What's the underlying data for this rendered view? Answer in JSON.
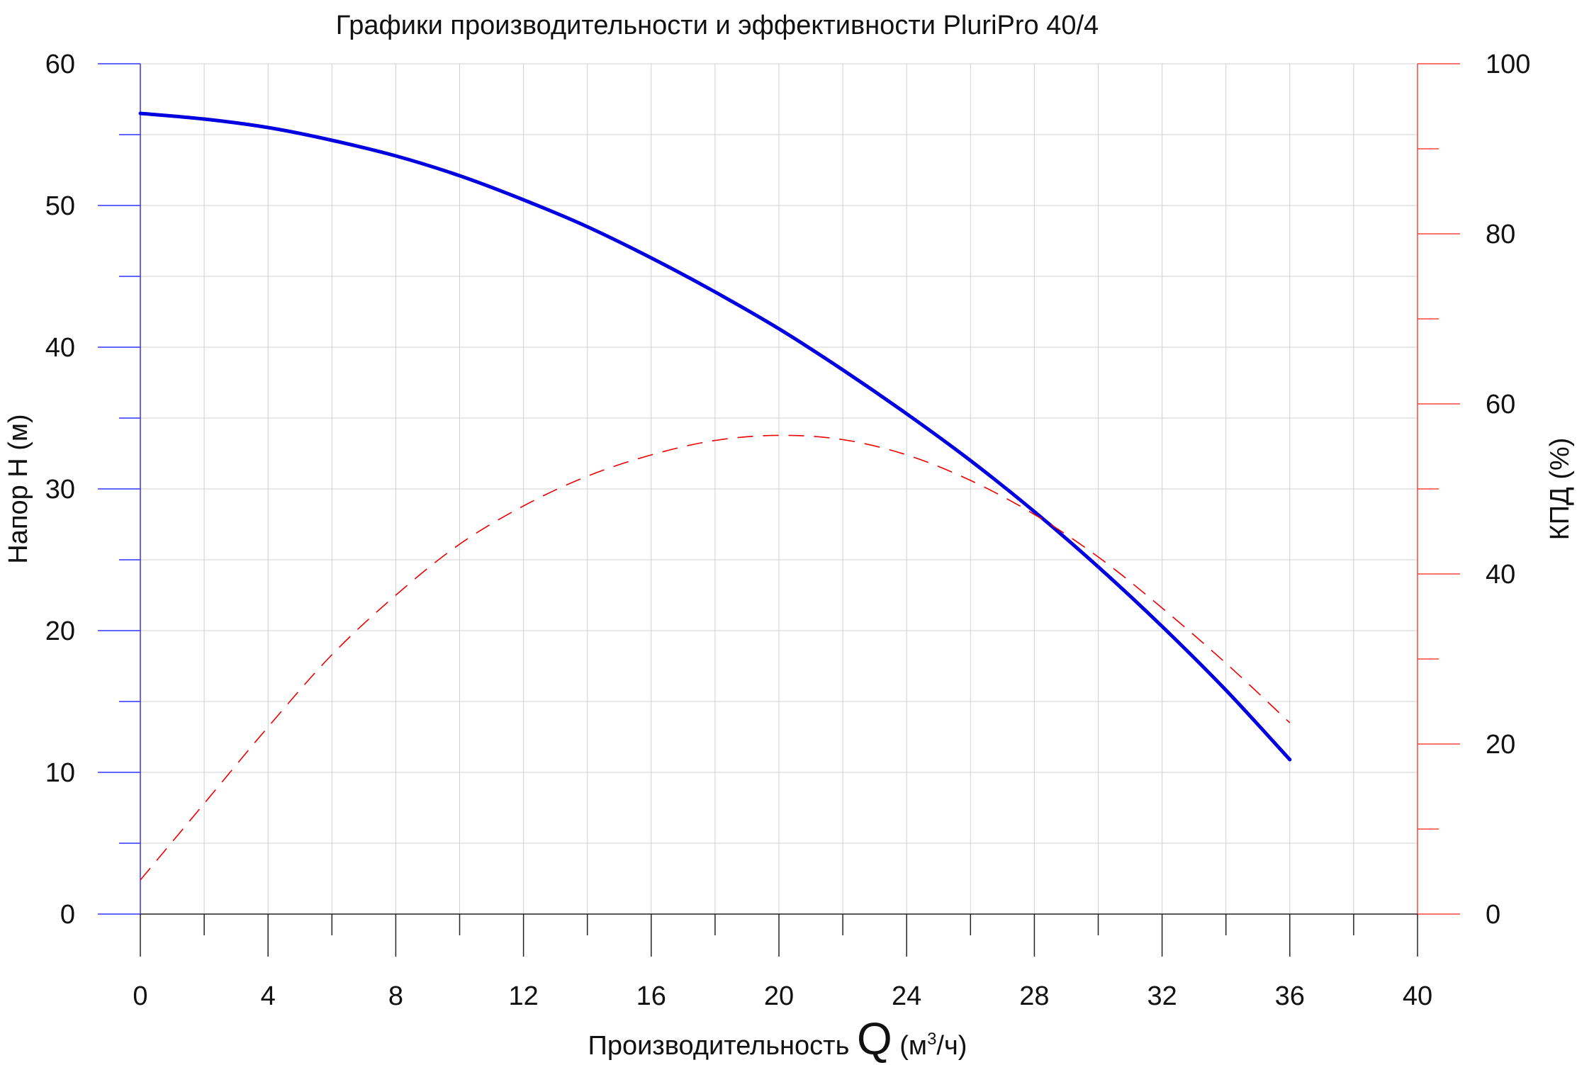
{
  "chart_data": {
    "type": "line",
    "title": "Графики производительности и эффективности PluriPro 40/4",
    "xlabel": {
      "prefix": "Производительность ",
      "symbol": "Q",
      "unit_open": " (м",
      "unit_sup": "3",
      "unit_close": "/ч)"
    },
    "ylabel_left": "Напор Н (м)",
    "ylabel_right": "КПД (%)",
    "xlim": [
      0,
      40
    ],
    "ylim_left": [
      0,
      60
    ],
    "ylim_right": [
      0,
      100
    ],
    "x_ticks": [
      0,
      4,
      8,
      12,
      16,
      20,
      24,
      28,
      32,
      36,
      40
    ],
    "y_left_ticks": [
      0,
      10,
      20,
      30,
      40,
      50,
      60
    ],
    "y_right_ticks": [
      0,
      20,
      40,
      60,
      80,
      100
    ],
    "grid": true,
    "series": [
      {
        "axis": "left",
        "style": "solid",
        "color": "#0000e0",
        "x": [
          0,
          2,
          4,
          6,
          8,
          10,
          12,
          14,
          16,
          18,
          20,
          22,
          24,
          26,
          28,
          30,
          32,
          34,
          36
        ],
        "y": [
          56.5,
          56.1,
          55.5,
          54.6,
          53.5,
          52.1,
          50.4,
          48.5,
          46.3,
          43.9,
          41.3,
          38.4,
          35.3,
          32.0,
          28.4,
          24.5,
          20.3,
          15.8,
          10.9
        ]
      },
      {
        "axis": "right",
        "style": "dashed",
        "color": "#ee0000",
        "x": [
          0,
          2,
          4,
          6,
          8,
          10,
          12,
          14,
          16,
          18,
          20,
          22,
          24,
          26,
          28,
          30,
          32,
          34,
          36
        ],
        "y": [
          4,
          13,
          22,
          30.5,
          37.5,
          43.5,
          48,
          51.5,
          54,
          55.7,
          56.3,
          55.8,
          54,
          51,
          47,
          42,
          36,
          29.5,
          22.5
        ]
      }
    ],
    "colors": {
      "left_axis": "#3333ff",
      "right_axis": "#ff4444",
      "bottom_axis": "#222222",
      "grid": "#d0d0d0"
    }
  }
}
